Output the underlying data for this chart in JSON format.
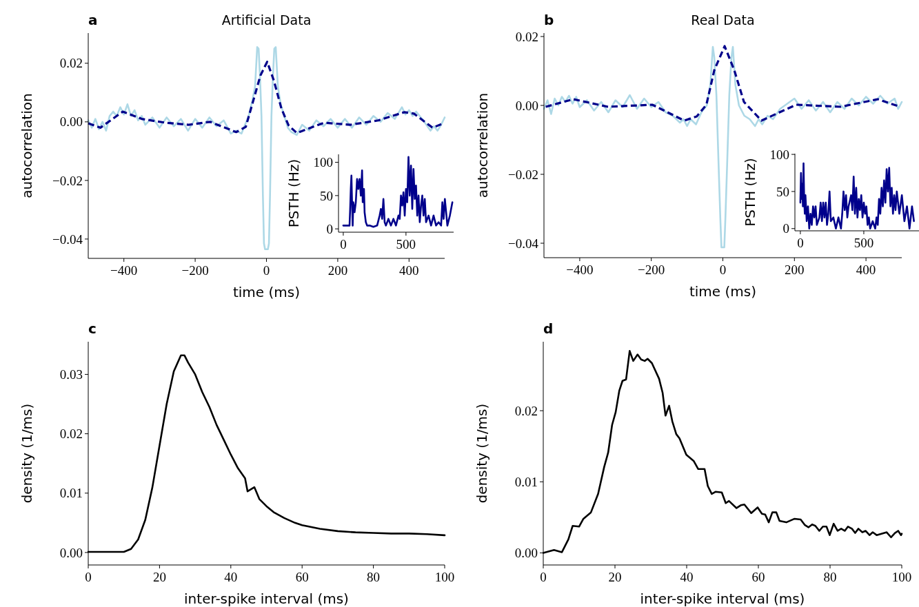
{
  "chart_data": [
    {
      "type": "line",
      "title": "Artificial Data",
      "annotations": [
        "a"
      ],
      "xlabel": "time (ms)",
      "ylabel": "autocorrelation",
      "xlim": [
        -500,
        500
      ],
      "ylim": [
        -0.0466,
        0.0303
      ],
      "xticks": [
        {
          "value": -400,
          "label": "−400"
        },
        {
          "value": -200,
          "label": "−200"
        },
        {
          "value": 0,
          "label": "0"
        },
        {
          "value": 200,
          "label": "200"
        },
        {
          "value": 400,
          "label": "400"
        }
      ],
      "yticks": [
        {
          "value": -0.04,
          "label": "−0.04"
        },
        {
          "value": -0.02,
          "label": "−0.02"
        },
        {
          "value": 0,
          "label": "0.00"
        },
        {
          "value": 0.02,
          "label": "0.02"
        }
      ],
      "series": [
        {
          "color": "#add8e6",
          "line_style": "solid",
          "x": [
            -500,
            -490,
            -480,
            -470,
            -460,
            -450,
            -440,
            -430,
            -420,
            -410,
            -400,
            -390,
            -380,
            -370,
            -360,
            -350,
            -340,
            -320,
            -300,
            -280,
            -260,
            -240,
            -220,
            -200,
            -180,
            -160,
            -140,
            -120,
            -100,
            -85,
            -70,
            -60,
            -50,
            -40,
            -32,
            -26,
            -22,
            -18,
            -14,
            -10,
            -7,
            -4,
            4,
            7,
            10,
            14,
            18,
            22,
            26,
            32,
            40,
            50,
            60,
            70,
            85,
            100,
            120,
            140,
            160,
            180,
            200,
            220,
            240,
            260,
            280,
            300,
            320,
            340,
            360,
            380,
            390,
            400,
            410,
            420,
            440,
            460,
            470,
            480,
            490,
            500
          ],
          "values": [
            0.0005,
            -0.002,
            0.001,
            -0.0025,
            0,
            -0.003,
            0.002,
            0.0035,
            0.002,
            0.005,
            0.0025,
            0.006,
            0.002,
            0.004,
            0.0005,
            0.002,
            -0.001,
            0.0015,
            -0.002,
            0.0015,
            -0.0015,
            0.001,
            -0.003,
            0.001,
            -0.002,
            0.0015,
            -0.0015,
            0.0005,
            -0.004,
            -0.003,
            -0.004,
            -0.001,
            0.002,
            0.007,
            0.012,
            0.0255,
            0.025,
            0.015,
            0.002,
            -0.025,
            -0.0415,
            -0.0435,
            -0.0435,
            -0.0415,
            -0.025,
            0.002,
            0.015,
            0.025,
            0.0255,
            0.012,
            0.006,
            0.002,
            -0.002,
            -0.0035,
            -0.0045,
            -0.001,
            -0.003,
            0.0005,
            -0.0015,
            0.001,
            -0.002,
            0.001,
            -0.002,
            0.0015,
            -0.001,
            0.002,
            0,
            0.003,
            0.001,
            0.005,
            0.0025,
            0.004,
            0.002,
            0.0035,
            0.0005,
            -0.003,
            -0.0015,
            -0.003,
            -0.001,
            0.0015
          ]
        },
        {
          "color": "#00008b",
          "line_style": "dashed",
          "x": [
            -500,
            -466,
            -403,
            -350,
            -283,
            -218,
            -158,
            -85,
            -58,
            -38,
            -17,
            2,
            21,
            42,
            62,
            85,
            162,
            235,
            314,
            387,
            414,
            466,
            493
          ],
          "values": [
            -0.0005,
            -0.002,
            0.0035,
            0.001,
            -0.0003,
            -0.001,
            0,
            -0.0035,
            -0.0017,
            0.0068,
            0.0158,
            0.0205,
            0.014,
            0.0045,
            -0.0012,
            -0.0038,
            -0.0003,
            -0.001,
            0.0005,
            0.0033,
            0.0028,
            -0.002,
            -0.0007
          ]
        }
      ]
    },
    {
      "type": "line",
      "ylabel": "PSTH (Hz)",
      "xlim": [
        -38,
        880
      ],
      "ylim": [
        -5,
        112
      ],
      "xticks": [
        0,
        500
      ],
      "yticks": [
        0,
        50,
        100
      ],
      "series": [
        {
          "color": "#00008b",
          "line_style": "solid",
          "x": [
            0,
            20,
            40,
            50,
            55,
            60,
            65,
            70,
            75,
            80,
            90,
            100,
            110,
            120,
            130,
            140,
            150,
            155,
            165,
            170,
            180,
            190,
            210,
            240,
            270,
            290,
            300,
            310,
            320,
            330,
            340,
            360,
            380,
            400,
            420,
            440,
            450,
            460,
            470,
            480,
            490,
            500,
            510,
            520,
            530,
            540,
            550,
            560,
            570,
            580,
            590,
            600,
            610,
            620,
            630,
            640,
            650,
            660,
            680,
            700,
            720,
            740,
            760,
            780,
            790,
            800,
            810,
            830,
            850,
            870
          ],
          "values": [
            5,
            5,
            5,
            5,
            30,
            60,
            80,
            40,
            5,
            40,
            25,
            40,
            75,
            60,
            75,
            50,
            88,
            40,
            60,
            25,
            10,
            5,
            5,
            3,
            5,
            20,
            30,
            15,
            45,
            10,
            5,
            15,
            5,
            15,
            5,
            20,
            15,
            50,
            35,
            55,
            20,
            60,
            40,
            108,
            50,
            95,
            30,
            90,
            45,
            65,
            20,
            50,
            10,
            35,
            50,
            20,
            45,
            10,
            20,
            5,
            20,
            5,
            10,
            5,
            40,
            15,
            45,
            5,
            20,
            40
          ]
        }
      ]
    },
    {
      "type": "line",
      "title": "Real Data",
      "annotations": [
        "b"
      ],
      "xlabel": "time (ms)",
      "ylabel": "autocorrelation",
      "xlim": [
        -500,
        500
      ],
      "ylim": [
        -0.0442,
        0.021
      ],
      "xticks": [
        {
          "value": -400,
          "label": "−400"
        },
        {
          "value": -200,
          "label": "−200"
        },
        {
          "value": 0,
          "label": "0"
        },
        {
          "value": 200,
          "label": "200"
        },
        {
          "value": 400,
          "label": "400"
        }
      ],
      "yticks": [
        {
          "value": -0.04,
          "label": "−0.04"
        },
        {
          "value": -0.02,
          "label": "−0.02"
        },
        {
          "value": 0,
          "label": "0.00"
        },
        {
          "value": 0.02,
          "label": "0.02"
        }
      ],
      "series": [
        {
          "color": "#add8e6",
          "line_style": "solid",
          "x": [
            -500,
            -490,
            -480,
            -470,
            -460,
            -450,
            -440,
            -430,
            -420,
            -410,
            -400,
            -380,
            -360,
            -340,
            -320,
            -300,
            -280,
            -260,
            -240,
            -220,
            -200,
            -180,
            -160,
            -140,
            -120,
            -110,
            -100,
            -90,
            -75,
            -60,
            -45,
            -35,
            -28,
            -24,
            -18,
            -12,
            -7,
            -4,
            4,
            7,
            12,
            18,
            24,
            28,
            35,
            45,
            60,
            75,
            90,
            100,
            110,
            125,
            140,
            160,
            180,
            200,
            220,
            240,
            260,
            280,
            300,
            320,
            340,
            360,
            380,
            400,
            420,
            440,
            460,
            480,
            490,
            500
          ],
          "values": [
            -0.001,
            0.0015,
            -0.0025,
            0.002,
            0,
            0.0025,
            0.001,
            0.0028,
            0.0005,
            0.0025,
            -0.0005,
            0.0015,
            -0.0015,
            0.001,
            -0.002,
            0.0015,
            -0.0005,
            0.003,
            -0.001,
            0.002,
            -0.0005,
            0.001,
            -0.002,
            -0.003,
            -0.005,
            -0.004,
            -0.006,
            -0.004,
            -0.0055,
            -0.002,
            0,
            0.006,
            0.017,
            0.014,
            0.003,
            -0.017,
            -0.033,
            -0.0412,
            -0.0412,
            -0.033,
            -0.017,
            0.003,
            0.014,
            0.017,
            0.006,
            0,
            -0.003,
            -0.004,
            -0.006,
            -0.004,
            -0.0055,
            -0.003,
            -0.004,
            -0.001,
            0.0005,
            0.002,
            -0.001,
            0.0015,
            -0.0015,
            0.001,
            -0.002,
            0.001,
            -0.001,
            0.002,
            0,
            0.0025,
            0.0005,
            0.0028,
            0.0005,
            0.002,
            -0.001,
            0.001
          ]
        },
        {
          "color": "#00008b",
          "line_style": "dashed",
          "x": [
            -495,
            -418,
            -321,
            -197,
            -108,
            -73,
            -46,
            -24,
            5,
            32,
            59,
            108,
            205,
            329,
            433,
            495
          ],
          "values": [
            -0.0004,
            0.0018,
            -0.0004,
            0.0002,
            -0.0044,
            -0.0032,
            0.0002,
            0.0102,
            0.0172,
            0.0102,
            0.001,
            -0.0044,
            0.0002,
            -0.0004,
            0.0018,
            -0.0004
          ]
        }
      ]
    },
    {
      "type": "line",
      "ylabel": "PSTH (Hz)",
      "xlim": [
        -43,
        935
      ],
      "ylim": [
        -3,
        101
      ],
      "xticks": [
        0,
        500
      ],
      "yticks": [
        0,
        50,
        100
      ],
      "series": [
        {
          "color": "#00008b",
          "line_style": "solid",
          "x": [
            0,
            5,
            10,
            15,
            20,
            25,
            30,
            35,
            40,
            50,
            60,
            70,
            80,
            90,
            100,
            110,
            120,
            130,
            150,
            160,
            170,
            180,
            190,
            200,
            210,
            220,
            230,
            240,
            260,
            280,
            300,
            320,
            330,
            340,
            350,
            360,
            370,
            380,
            400,
            410,
            420,
            430,
            440,
            450,
            460,
            470,
            480,
            490,
            500,
            510,
            520,
            530,
            540,
            550,
            570,
            590,
            600,
            610,
            620,
            630,
            640,
            650,
            660,
            670,
            680,
            690,
            700,
            710,
            720,
            730,
            740,
            750,
            760,
            780,
            800,
            820,
            840,
            860,
            880,
            895
          ],
          "values": [
            35,
            75,
            40,
            60,
            30,
            88,
            40,
            20,
            45,
            10,
            30,
            0,
            20,
            5,
            30,
            15,
            30,
            5,
            15,
            35,
            10,
            35,
            15,
            35,
            5,
            20,
            50,
            10,
            15,
            0,
            15,
            0,
            20,
            50,
            25,
            45,
            15,
            30,
            45,
            25,
            70,
            20,
            55,
            15,
            40,
            25,
            45,
            15,
            35,
            20,
            30,
            5,
            15,
            0,
            10,
            0,
            15,
            5,
            40,
            20,
            55,
            30,
            65,
            35,
            80,
            50,
            82,
            30,
            55,
            20,
            45,
            25,
            50,
            20,
            45,
            10,
            30,
            0,
            30,
            10
          ]
        }
      ]
    },
    {
      "type": "line",
      "annotations": [
        "c"
      ],
      "xlabel": "inter-spike interval (ms)",
      "ylabel": "density (1/ms)",
      "xlim": [
        0,
        100
      ],
      "ylim": [
        -0.0021,
        0.0355
      ],
      "xticks": [
        0,
        20,
        40,
        60,
        80,
        100
      ],
      "yticks": [
        {
          "value": 0,
          "label": "0.00"
        },
        0.01,
        0.02,
        0.03
      ],
      "series": [
        {
          "color": "#000000",
          "line_style": "solid",
          "x": [
            0,
            5,
            10,
            12,
            14,
            16,
            18,
            20,
            22,
            24,
            26,
            27,
            28,
            30,
            32,
            34,
            36,
            38,
            40,
            42,
            44,
            44.7,
            46.6,
            48,
            50,
            52,
            55,
            58,
            60,
            65,
            70,
            75,
            80,
            85,
            90,
            95,
            100
          ],
          "values": [
            0.0001,
            0.0001,
            0.0001,
            0.0006,
            0.0022,
            0.0055,
            0.011,
            0.018,
            0.025,
            0.0305,
            0.0332,
            0.0332,
            0.032,
            0.03,
            0.027,
            0.0245,
            0.0215,
            0.019,
            0.0165,
            0.0142,
            0.0125,
            0.0103,
            0.011,
            0.009,
            0.0078,
            0.0068,
            0.0058,
            0.005,
            0.0046,
            0.004,
            0.0036,
            0.0034,
            0.0033,
            0.0032,
            0.0032,
            0.0031,
            0.0029
          ]
        }
      ]
    },
    {
      "type": "line",
      "annotations": [
        "d"
      ],
      "xlabel": "inter-spike interval (ms)",
      "ylabel": "density (1/ms)",
      "xlim": [
        0,
        100
      ],
      "ylim": [
        -0.0017,
        0.0297
      ],
      "xticks": [
        0,
        20,
        40,
        60,
        80,
        100
      ],
      "yticks": [
        {
          "value": 0,
          "label": "0.00"
        },
        0.01,
        0.02
      ],
      "series": [
        {
          "color": "#000000",
          "line_style": "solid",
          "x": [
            0,
            3,
            5.2,
            7,
            8.2,
            10,
            11.2,
            13.3,
            15.3,
            17,
            18.1,
            19.2,
            20.2,
            21.2,
            22.1,
            23.1,
            24.1,
            25.1,
            26.3,
            27.3,
            28.3,
            29.1,
            30.3,
            32.3,
            33.3,
            34.1,
            35.1,
            36,
            37.1,
            38,
            39.9,
            42,
            43.2,
            45,
            45.9,
            47,
            48.1,
            49.8,
            50.9,
            51.8,
            53.9,
            55.1,
            56.1,
            58,
            59.8,
            61,
            61.9,
            62.9,
            63.9,
            65,
            65.9,
            67.8,
            70.1,
            71.8,
            73,
            74,
            75,
            75.9,
            77,
            78,
            79,
            79.9,
            81,
            82.1,
            83.1,
            84.1,
            85,
            86.1,
            87,
            87.9,
            89,
            89.9,
            91,
            91.9,
            93,
            95.8,
            97,
            98.1,
            99,
            99.8,
            100
          ],
          "values": [
            0,
            0.0004,
            0.0001,
            0.0019,
            0.0038,
            0.0037,
            0.0048,
            0.0057,
            0.0083,
            0.0121,
            0.0141,
            0.018,
            0.0198,
            0.0228,
            0.0242,
            0.0244,
            0.0284,
            0.027,
            0.0279,
            0.0272,
            0.027,
            0.0273,
            0.0267,
            0.0245,
            0.0225,
            0.0193,
            0.0207,
            0.0185,
            0.0167,
            0.0161,
            0.0138,
            0.0129,
            0.0118,
            0.0118,
            0.0094,
            0.0083,
            0.0086,
            0.0085,
            0.007,
            0.0073,
            0.0063,
            0.0067,
            0.0068,
            0.0056,
            0.0064,
            0.0055,
            0.0054,
            0.0043,
            0.0057,
            0.0057,
            0.0045,
            0.0043,
            0.0048,
            0.0047,
            0.0039,
            0.0036,
            0.004,
            0.0038,
            0.0031,
            0.0037,
            0.0037,
            0.0025,
            0.0041,
            0.0031,
            0.0034,
            0.0031,
            0.0037,
            0.0034,
            0.0028,
            0.0034,
            0.0029,
            0.0031,
            0.0025,
            0.0029,
            0.0025,
            0.0029,
            0.0022,
            0.0028,
            0.0031,
            0.0025,
            0.0027
          ]
        }
      ]
    }
  ]
}
